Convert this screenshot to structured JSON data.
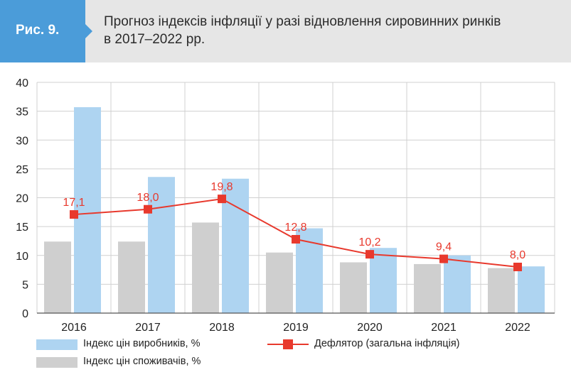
{
  "header": {
    "figure_label": "Рис. 9.",
    "title": "Прогноз індексів інфляції у разі відновлення сировинних ринків в 2017–2022 рр."
  },
  "colors": {
    "header_bg": "#e6e6e6",
    "badge": "#4b9cd9",
    "producer": "#aed4f1",
    "consumer": "#cfcfcf",
    "deflator": "#e8392d",
    "grid": "#d0d0d0"
  },
  "legend": {
    "producer": "Індекс цін виробників, %",
    "consumer": "Індекс цін споживачів, %",
    "deflator": "Дефлятор (загальна інфляція)"
  },
  "chart_data": {
    "type": "bar",
    "categories": [
      "2016",
      "2017",
      "2018",
      "2019",
      "2020",
      "2021",
      "2022"
    ],
    "ylim": [
      0,
      40
    ],
    "yticks": [
      "0",
      "5",
      "10",
      "15",
      "20",
      "25",
      "30",
      "35",
      "40"
    ],
    "grid": true,
    "legend_position": "bottom",
    "series": [
      {
        "name": "Індекс цін споживачів, %",
        "type": "bar",
        "values": [
          12.4,
          12.4,
          15.7,
          10.5,
          8.8,
          8.5,
          7.8
        ]
      },
      {
        "name": "Індекс цін виробників, %",
        "type": "bar",
        "values": [
          35.7,
          23.6,
          23.3,
          14.7,
          11.3,
          10.0,
          8.1
        ]
      },
      {
        "name": "Дефлятор (загальна інфляція)",
        "type": "line",
        "values": [
          17.1,
          18.0,
          19.8,
          12.8,
          10.2,
          9.4,
          8.0
        ],
        "labels": [
          "17,1",
          "18,0",
          "19,8",
          "12,8",
          "10,2",
          "9,4",
          "8,0"
        ]
      }
    ]
  }
}
